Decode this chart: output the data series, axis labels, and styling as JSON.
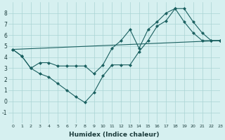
{
  "line1_x": [
    0,
    1,
    2,
    3,
    4,
    5,
    6,
    7,
    8,
    9,
    10,
    11,
    12,
    13,
    14,
    15,
    16,
    17,
    18,
    19,
    20,
    21,
    22,
    23
  ],
  "line1_y": [
    4.7,
    4.1,
    3.0,
    3.5,
    3.5,
    3.2,
    3.2,
    3.2,
    3.2,
    2.5,
    3.3,
    4.8,
    5.5,
    6.5,
    4.8,
    6.5,
    7.2,
    8.0,
    8.4,
    7.2,
    6.2,
    5.5,
    5.5,
    5.5
  ],
  "line2_x": [
    0,
    1,
    2,
    3,
    4,
    5,
    6,
    7,
    8,
    9,
    10,
    11,
    12,
    13,
    14,
    15,
    16,
    17,
    18,
    19,
    20,
    21,
    22,
    23
  ],
  "line2_y": [
    4.7,
    4.1,
    3.0,
    2.5,
    2.2,
    1.6,
    1.0,
    0.4,
    -0.1,
    0.8,
    2.3,
    3.3,
    3.3,
    3.3,
    4.5,
    5.5,
    6.8,
    7.3,
    8.4,
    8.4,
    7.2,
    6.2,
    5.5,
    5.5
  ],
  "line3_x": [
    0,
    23
  ],
  "line3_y": [
    4.7,
    5.5
  ],
  "bg_color": "#d6f0f0",
  "grid_color": "#aad4d4",
  "line_color": "#1a6060",
  "xlabel": "Humidex (Indice chaleur)",
  "ylim": [
    -2,
    9
  ],
  "xlim": [
    -0.5,
    23
  ],
  "yticks": [
    -1,
    0,
    1,
    2,
    3,
    4,
    5,
    6,
    7,
    8
  ],
  "xticks": [
    0,
    1,
    2,
    3,
    4,
    5,
    6,
    7,
    8,
    9,
    10,
    11,
    12,
    13,
    14,
    15,
    16,
    17,
    18,
    19,
    20,
    21,
    22,
    23
  ]
}
